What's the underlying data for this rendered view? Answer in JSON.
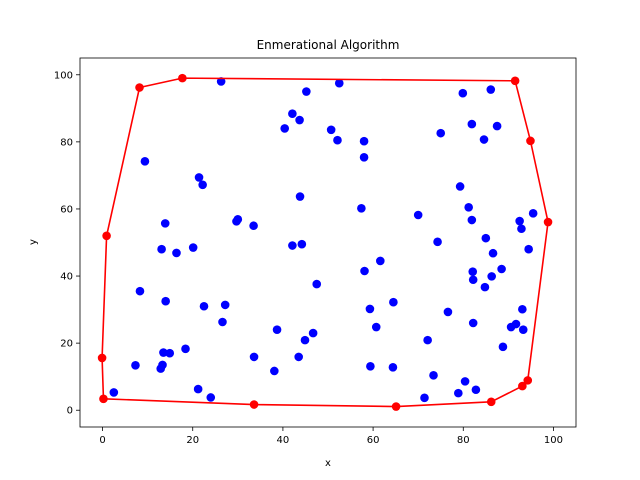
{
  "chart_data": {
    "type": "scatter",
    "title": "Enmerational Algorithm",
    "xlabel": "x",
    "ylabel": "y",
    "xlim": [
      -5,
      105
    ],
    "ylim": [
      -5,
      105
    ],
    "xticks": [
      0,
      20,
      40,
      60,
      80,
      100
    ],
    "yticks": [
      0,
      20,
      40,
      60,
      80,
      100
    ],
    "grid": false,
    "series": [
      {
        "role": "points",
        "color": "#0000ff",
        "points": [
          [
            2.5,
            5.3
          ],
          [
            7.3,
            13.4
          ],
          [
            8.3,
            35.5
          ],
          [
            9.4,
            74.2
          ],
          [
            12.9,
            12.4
          ],
          [
            13.1,
            48.0
          ],
          [
            13.3,
            13.5
          ],
          [
            13.5,
            17.2
          ],
          [
            13.9,
            55.7
          ],
          [
            14.0,
            32.5
          ],
          [
            14.9,
            17.0
          ],
          [
            16.4,
            46.9
          ],
          [
            18.4,
            18.3
          ],
          [
            20.1,
            48.5
          ],
          [
            21.2,
            6.3
          ],
          [
            21.4,
            69.4
          ],
          [
            22.2,
            67.2
          ],
          [
            22.5,
            31.0
          ],
          [
            24.0,
            3.8
          ],
          [
            26.3,
            98.0
          ],
          [
            26.6,
            26.3
          ],
          [
            27.2,
            31.4
          ],
          [
            29.7,
            56.3
          ],
          [
            30.0,
            56.9
          ],
          [
            33.5,
            55.0
          ],
          [
            33.6,
            15.9
          ],
          [
            38.1,
            11.7
          ],
          [
            38.7,
            24.0
          ],
          [
            40.4,
            84.0
          ],
          [
            42.1,
            49.1
          ],
          [
            42.1,
            88.4
          ],
          [
            43.5,
            15.9
          ],
          [
            43.7,
            86.5
          ],
          [
            43.8,
            63.7
          ],
          [
            44.2,
            49.5
          ],
          [
            44.9,
            20.9
          ],
          [
            45.2,
            95.0
          ],
          [
            46.7,
            23.0
          ],
          [
            47.5,
            37.6
          ],
          [
            50.7,
            83.6
          ],
          [
            52.1,
            80.5
          ],
          [
            52.5,
            97.5
          ],
          [
            57.4,
            60.2
          ],
          [
            58.0,
            80.2
          ],
          [
            58.0,
            75.4
          ],
          [
            58.1,
            41.5
          ],
          [
            59.3,
            30.2
          ],
          [
            59.4,
            13.1
          ],
          [
            60.7,
            24.8
          ],
          [
            61.6,
            44.5
          ],
          [
            64.4,
            12.8
          ],
          [
            64.5,
            32.2
          ],
          [
            70.0,
            58.2
          ],
          [
            71.4,
            3.7
          ],
          [
            72.1,
            20.9
          ],
          [
            73.4,
            10.4
          ],
          [
            74.3,
            50.2
          ],
          [
            75.0,
            82.6
          ],
          [
            76.6,
            29.3
          ],
          [
            78.9,
            5.1
          ],
          [
            79.3,
            66.7
          ],
          [
            79.9,
            94.5
          ],
          [
            80.4,
            8.6
          ],
          [
            81.2,
            60.5
          ],
          [
            81.9,
            85.3
          ],
          [
            81.9,
            56.7
          ],
          [
            82.1,
            41.3
          ],
          [
            82.2,
            38.9
          ],
          [
            82.2,
            26.0
          ],
          [
            82.8,
            6.1
          ],
          [
            84.6,
            80.7
          ],
          [
            84.8,
            36.7
          ],
          [
            85.0,
            51.3
          ],
          [
            86.1,
            95.6
          ],
          [
            86.3,
            39.9
          ],
          [
            86.6,
            46.8
          ],
          [
            87.5,
            84.7
          ],
          [
            88.5,
            42.1
          ],
          [
            88.8,
            18.9
          ],
          [
            90.6,
            24.8
          ],
          [
            91.7,
            25.7
          ],
          [
            92.5,
            56.4
          ],
          [
            92.9,
            54.1
          ],
          [
            93.1,
            30.1
          ],
          [
            93.3,
            24.0
          ],
          [
            94.5,
            48.0
          ],
          [
            95.5,
            58.7
          ]
        ]
      },
      {
        "role": "hull",
        "color": "#ff0000",
        "points": [
          [
            0.2,
            3.4
          ],
          [
            -0.1,
            15.6
          ],
          [
            0.9,
            52.0
          ],
          [
            8.2,
            96.2
          ],
          [
            17.7,
            99.0
          ],
          [
            91.5,
            98.2
          ],
          [
            94.9,
            80.3
          ],
          [
            98.8,
            56.1
          ],
          [
            94.3,
            8.9
          ],
          [
            93.1,
            7.2
          ],
          [
            86.2,
            2.5
          ],
          [
            65.1,
            1.1
          ],
          [
            33.6,
            1.7
          ],
          [
            0.2,
            3.4
          ]
        ]
      }
    ]
  }
}
